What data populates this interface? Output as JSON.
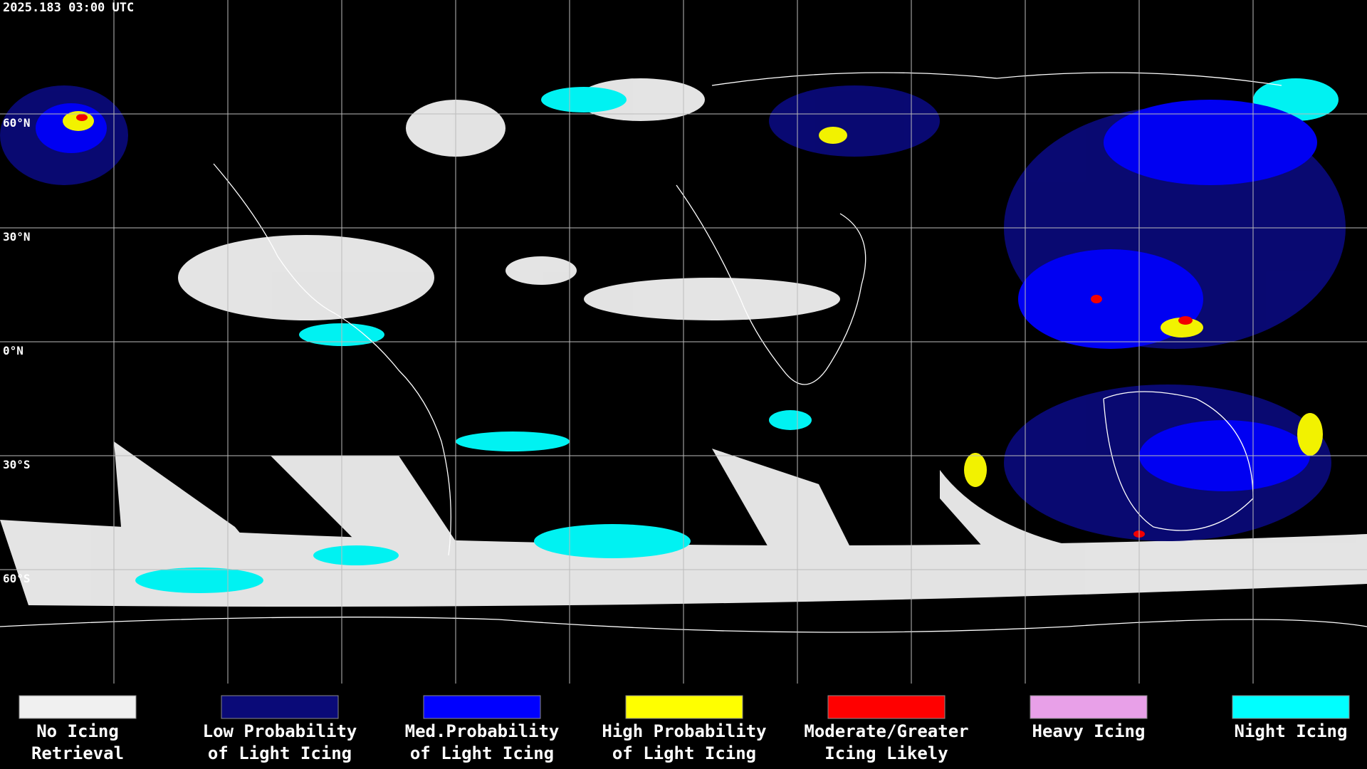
{
  "header": {
    "timestamp": "2025.183 03:00 UTC"
  },
  "map": {
    "latitude_labels": [
      "60°N",
      "30°N",
      "0°N",
      "30°S",
      "60°S"
    ]
  },
  "legend": {
    "items": [
      {
        "label": [
          "No Icing",
          "Retrieval"
        ],
        "color": "#f0f0f0"
      },
      {
        "label": [
          "Low Probability",
          "of Light Icing"
        ],
        "color": "#0a0a78"
      },
      {
        "label": [
          "Med.Probability",
          "of Light Icing"
        ],
        "color": "#0000ff"
      },
      {
        "label": [
          "High Probability",
          "of Light Icing"
        ],
        "color": "#ffff00"
      },
      {
        "label": [
          "Moderate/Greater",
          "Icing Likely"
        ],
        "color": "#ff0000"
      },
      {
        "label": [
          "Heavy Icing"
        ],
        "color": "#e8a0e8"
      },
      {
        "label": [
          "Night Icing"
        ],
        "color": "#00ffff"
      }
    ]
  }
}
